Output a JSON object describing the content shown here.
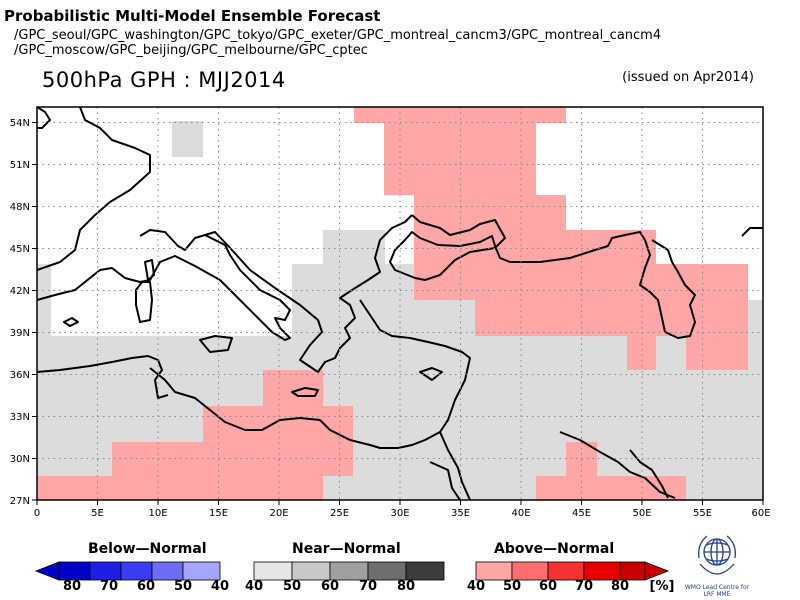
{
  "header": {
    "title": "Probabilistic Multi-Model Ensemble Forecast",
    "models_line1": "/GPC_seoul/GPC_washington/GPC_tokyo/GPC_exeter/GPC_montreal_cancm3/GPC_montreal_cancm4",
    "models_line2": "/GPC_moscow/GPC_beijing/GPC_melbourne/GPC_cptec",
    "map_title": "500hPa GPH : MJJ2014",
    "issued": "(issued on Apr2014)"
  },
  "map": {
    "lon_labels": [
      "0",
      "5E",
      "10E",
      "15E",
      "20E",
      "25E",
      "30E",
      "35E",
      "40E",
      "45E",
      "50E",
      "55E",
      "60E"
    ],
    "lat_labels": [
      "27N",
      "30N",
      "33N",
      "36N",
      "39N",
      "42N",
      "45N",
      "48N",
      "51N",
      "54N"
    ],
    "colors": {
      "near_normal_light": "#dcdcdc",
      "above_normal_light": "#ffa6a6",
      "coast": "#000000"
    }
  },
  "legend": {
    "below": {
      "title": "Below—Normal",
      "labels": [
        "80",
        "70",
        "60",
        "50",
        "40"
      ],
      "colors": [
        "#0000c8",
        "#1e1ee6",
        "#3c3cf5",
        "#6e6ef5",
        "#a5a5ff"
      ]
    },
    "near": {
      "title": "Near—Normal",
      "labels": [
        "40",
        "50",
        "60",
        "70",
        "80"
      ],
      "colors": [
        "#e6e6e6",
        "#c8c8c8",
        "#a0a0a0",
        "#6e6e6e",
        "#3c3c3c"
      ]
    },
    "above": {
      "title": "Above—Normal",
      "labels": [
        "40",
        "50",
        "60",
        "70",
        "80"
      ],
      "unit": "[%]",
      "colors": [
        "#ffa6a6",
        "#ff6e6e",
        "#f53232",
        "#e60000",
        "#c80000"
      ]
    }
  },
  "logo": {
    "text_line1": "WMO Lead Centre for",
    "text_line2": "LRF MME"
  }
}
